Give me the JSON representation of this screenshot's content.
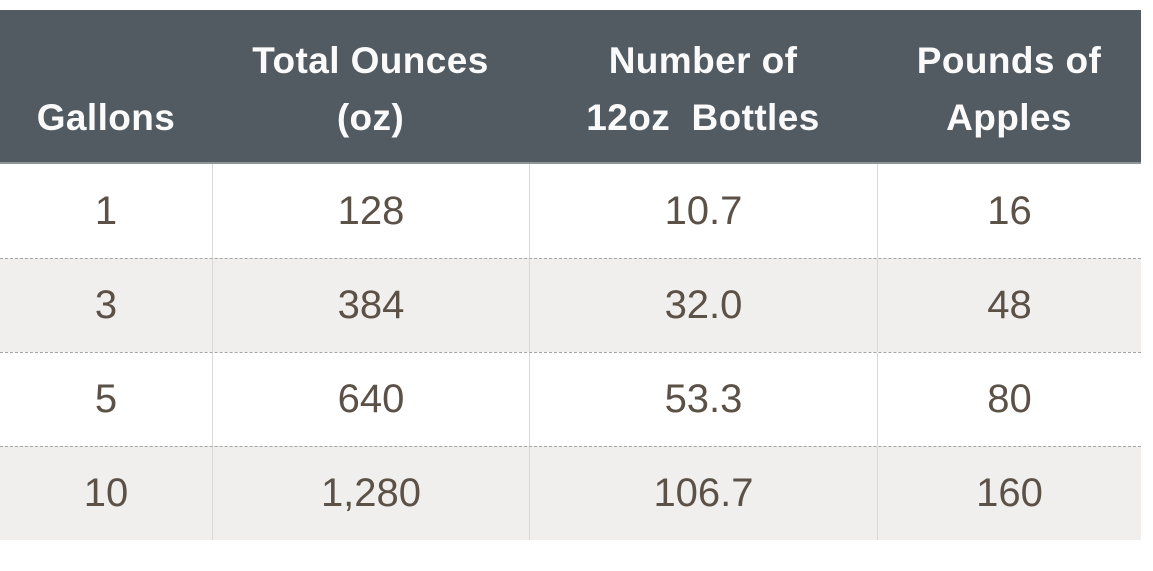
{
  "chart_data": {
    "type": "table",
    "columns": [
      "Gallons",
      "Total Ounces (oz)",
      "Number of 12oz Bottles",
      "Pounds of Apples"
    ],
    "rows": [
      [
        1,
        128,
        10.7,
        16
      ],
      [
        3,
        384,
        32.0,
        48
      ],
      [
        5,
        640,
        53.3,
        80
      ],
      [
        10,
        1280,
        106.7,
        160
      ]
    ]
  },
  "table": {
    "columns": [
      {
        "label": "Gallons"
      },
      {
        "label": "Total Ounces\n(oz)"
      },
      {
        "label": "Number of\n12oz  Bottles"
      },
      {
        "label": "Pounds of\nApples"
      }
    ],
    "rows": [
      [
        "1",
        "128",
        "10.7",
        "16"
      ],
      [
        "3",
        "384",
        "32.0",
        "48"
      ],
      [
        "5",
        "640",
        "53.3",
        "80"
      ],
      [
        "10",
        "1,280",
        "106.7",
        "160"
      ]
    ]
  },
  "colors": {
    "page_bg": "#ffffff",
    "header_bg": "#525b62",
    "header_text": "#fafafa",
    "header_edge": "#8f969a",
    "row_bg": "#ffffff",
    "row_alt_bg": "#f0efed",
    "body_text": "#5b5147",
    "divider_vertical": "#d8d8d6",
    "divider_dashed": "#a5a5a3"
  }
}
